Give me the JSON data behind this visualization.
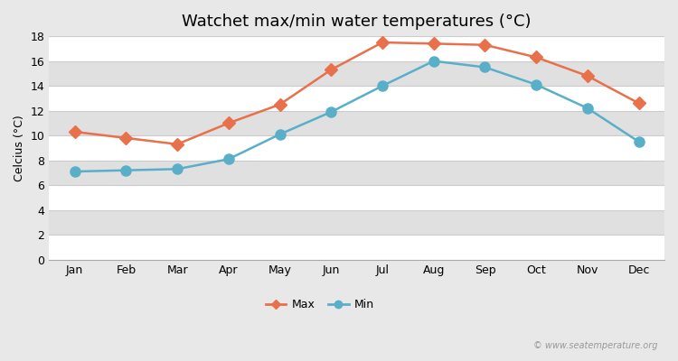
{
  "title": "Watchet max/min water temperatures (°C)",
  "ylabel": "Celcius (°C)",
  "months": [
    "Jan",
    "Feb",
    "Mar",
    "Apr",
    "May",
    "Jun",
    "Jul",
    "Aug",
    "Sep",
    "Oct",
    "Nov",
    "Dec"
  ],
  "max_temps": [
    10.3,
    9.8,
    9.3,
    11.0,
    12.5,
    15.3,
    17.5,
    17.4,
    17.3,
    16.3,
    14.8,
    12.6
  ],
  "min_temps": [
    7.1,
    7.2,
    7.3,
    8.1,
    10.1,
    11.9,
    14.0,
    16.0,
    15.5,
    14.1,
    12.2,
    9.5
  ],
  "max_color": "#e8704a",
  "min_color": "#5aafc8",
  "figure_bg": "#e8e8e8",
  "plot_bg": "#ffffff",
  "stripe_color": "#e0e0e0",
  "grid_color": "#cccccc",
  "ylim": [
    0,
    18
  ],
  "yticks": [
    0,
    2,
    4,
    6,
    8,
    10,
    12,
    14,
    16,
    18
  ],
  "legend_max": "Max",
  "legend_min": "Min",
  "watermark": "© www.seatemperature.org",
  "title_fontsize": 13,
  "label_fontsize": 9,
  "tick_fontsize": 9,
  "marker_size_max": 7,
  "marker_size_min": 8,
  "line_width": 1.8
}
